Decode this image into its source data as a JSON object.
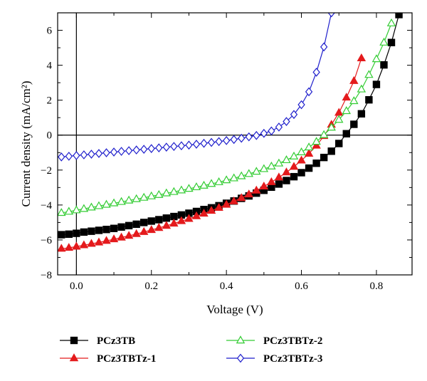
{
  "chart_data": {
    "type": "scatter",
    "xlabel": "Voltage (V)",
    "ylabel": "Current density (mA/cm²)",
    "xlim": [
      -0.05,
      0.895
    ],
    "ylim": [
      -8,
      7
    ],
    "x_ticks": [
      0.0,
      0.2,
      0.4,
      0.6,
      0.8
    ],
    "x_tick_labels": [
      "0.0",
      "0.2",
      "0.4",
      "0.6",
      "0.8"
    ],
    "y_ticks": [
      -8,
      -6,
      -4,
      -2,
      0,
      2,
      4,
      6
    ],
    "y_tick_labels": [
      "−8",
      "−6",
      "−4",
      "−2",
      "0",
      "2",
      "4",
      "6"
    ],
    "reference_lines": {
      "horizontal_at_y": 0,
      "vertical_at_x": 0
    },
    "grid": false,
    "legend_position": "bottom",
    "series": [
      {
        "name": "PCz3TB",
        "color": "#000000",
        "marker": "square-filled",
        "x": [
          -0.04,
          -0.02,
          0.0,
          0.02,
          0.04,
          0.06,
          0.08,
          0.1,
          0.12,
          0.14,
          0.16,
          0.18,
          0.2,
          0.22,
          0.24,
          0.26,
          0.28,
          0.3,
          0.32,
          0.34,
          0.36,
          0.38,
          0.4,
          0.42,
          0.44,
          0.46,
          0.48,
          0.5,
          0.52,
          0.54,
          0.56,
          0.58,
          0.6,
          0.62,
          0.64,
          0.66,
          0.68,
          0.7,
          0.72,
          0.74,
          0.76,
          0.78,
          0.8,
          0.82,
          0.84,
          0.86
        ],
        "y": [
          -5.7,
          -5.67,
          -5.62,
          -5.55,
          -5.5,
          -5.45,
          -5.4,
          -5.34,
          -5.26,
          -5.18,
          -5.1,
          -5.0,
          -4.92,
          -4.84,
          -4.75,
          -4.66,
          -4.57,
          -4.47,
          -4.37,
          -4.26,
          -4.16,
          -4.04,
          -3.9,
          -3.77,
          -3.62,
          -3.48,
          -3.32,
          -3.16,
          -2.98,
          -2.8,
          -2.6,
          -2.38,
          -2.15,
          -1.89,
          -1.61,
          -1.28,
          -0.92,
          -0.48,
          0.08,
          0.62,
          1.22,
          2.02,
          2.9,
          4.02,
          5.3,
          6.9
        ]
      },
      {
        "name": "PCz3TBTz-1",
        "color": "#e41a1c",
        "marker": "triangle-filled",
        "x": [
          -0.04,
          -0.02,
          0.0,
          0.02,
          0.04,
          0.06,
          0.08,
          0.1,
          0.12,
          0.14,
          0.16,
          0.18,
          0.2,
          0.22,
          0.24,
          0.26,
          0.28,
          0.3,
          0.32,
          0.34,
          0.36,
          0.38,
          0.4,
          0.42,
          0.44,
          0.46,
          0.48,
          0.5,
          0.52,
          0.54,
          0.56,
          0.58,
          0.6,
          0.62,
          0.64,
          0.66,
          0.68,
          0.7,
          0.72,
          0.74,
          0.76
        ],
        "y": [
          -6.5,
          -6.45,
          -6.38,
          -6.3,
          -6.22,
          -6.14,
          -6.05,
          -5.96,
          -5.86,
          -5.76,
          -5.66,
          -5.54,
          -5.43,
          -5.31,
          -5.19,
          -5.06,
          -4.92,
          -4.79,
          -4.64,
          -4.49,
          -4.33,
          -4.16,
          -3.98,
          -3.79,
          -3.6,
          -3.39,
          -3.17,
          -2.94,
          -2.69,
          -2.42,
          -2.13,
          -1.81,
          -1.45,
          -1.06,
          -0.6,
          -0.05,
          0.6,
          1.28,
          2.15,
          3.1,
          4.4
        ]
      },
      {
        "name": "PCz3TBTz-2",
        "color": "#33cc33",
        "marker": "triangle-open",
        "x": [
          -0.04,
          -0.02,
          0.0,
          0.02,
          0.04,
          0.06,
          0.08,
          0.1,
          0.12,
          0.14,
          0.16,
          0.18,
          0.2,
          0.22,
          0.24,
          0.26,
          0.28,
          0.3,
          0.32,
          0.34,
          0.36,
          0.38,
          0.4,
          0.42,
          0.44,
          0.46,
          0.48,
          0.5,
          0.52,
          0.54,
          0.56,
          0.58,
          0.6,
          0.62,
          0.64,
          0.66,
          0.68,
          0.7,
          0.72,
          0.74,
          0.76,
          0.78,
          0.8,
          0.82,
          0.84
        ],
        "y": [
          -4.45,
          -4.38,
          -4.3,
          -4.22,
          -4.14,
          -4.06,
          -3.98,
          -3.9,
          -3.82,
          -3.74,
          -3.66,
          -3.58,
          -3.5,
          -3.42,
          -3.33,
          -3.25,
          -3.16,
          -3.07,
          -2.98,
          -2.89,
          -2.79,
          -2.69,
          -2.58,
          -2.47,
          -2.35,
          -2.22,
          -2.09,
          -1.94,
          -1.79,
          -1.62,
          -1.43,
          -1.22,
          -0.98,
          -0.7,
          -0.38,
          0.01,
          0.43,
          0.88,
          1.38,
          1.95,
          2.62,
          3.45,
          4.35,
          5.3,
          6.4
        ]
      },
      {
        "name": "PCz3TBTz-3",
        "color": "#1f1fcc",
        "marker": "diamond-open",
        "x": [
          -0.04,
          -0.02,
          0.0,
          0.02,
          0.04,
          0.06,
          0.08,
          0.1,
          0.12,
          0.14,
          0.16,
          0.18,
          0.2,
          0.22,
          0.24,
          0.26,
          0.28,
          0.3,
          0.32,
          0.34,
          0.36,
          0.38,
          0.4,
          0.42,
          0.44,
          0.46,
          0.48,
          0.5,
          0.52,
          0.54,
          0.56,
          0.58,
          0.6,
          0.62,
          0.64,
          0.66,
          0.68
        ],
        "y": [
          -1.25,
          -1.21,
          -1.17,
          -1.13,
          -1.09,
          -1.05,
          -1.01,
          -0.97,
          -0.93,
          -0.89,
          -0.85,
          -0.81,
          -0.77,
          -0.73,
          -0.69,
          -0.65,
          -0.61,
          -0.57,
          -0.52,
          -0.47,
          -0.42,
          -0.37,
          -0.31,
          -0.25,
          -0.18,
          -0.1,
          -0.02,
          0.1,
          0.24,
          0.46,
          0.78,
          1.18,
          1.74,
          2.48,
          3.6,
          5.05,
          7.0
        ]
      }
    ]
  }
}
